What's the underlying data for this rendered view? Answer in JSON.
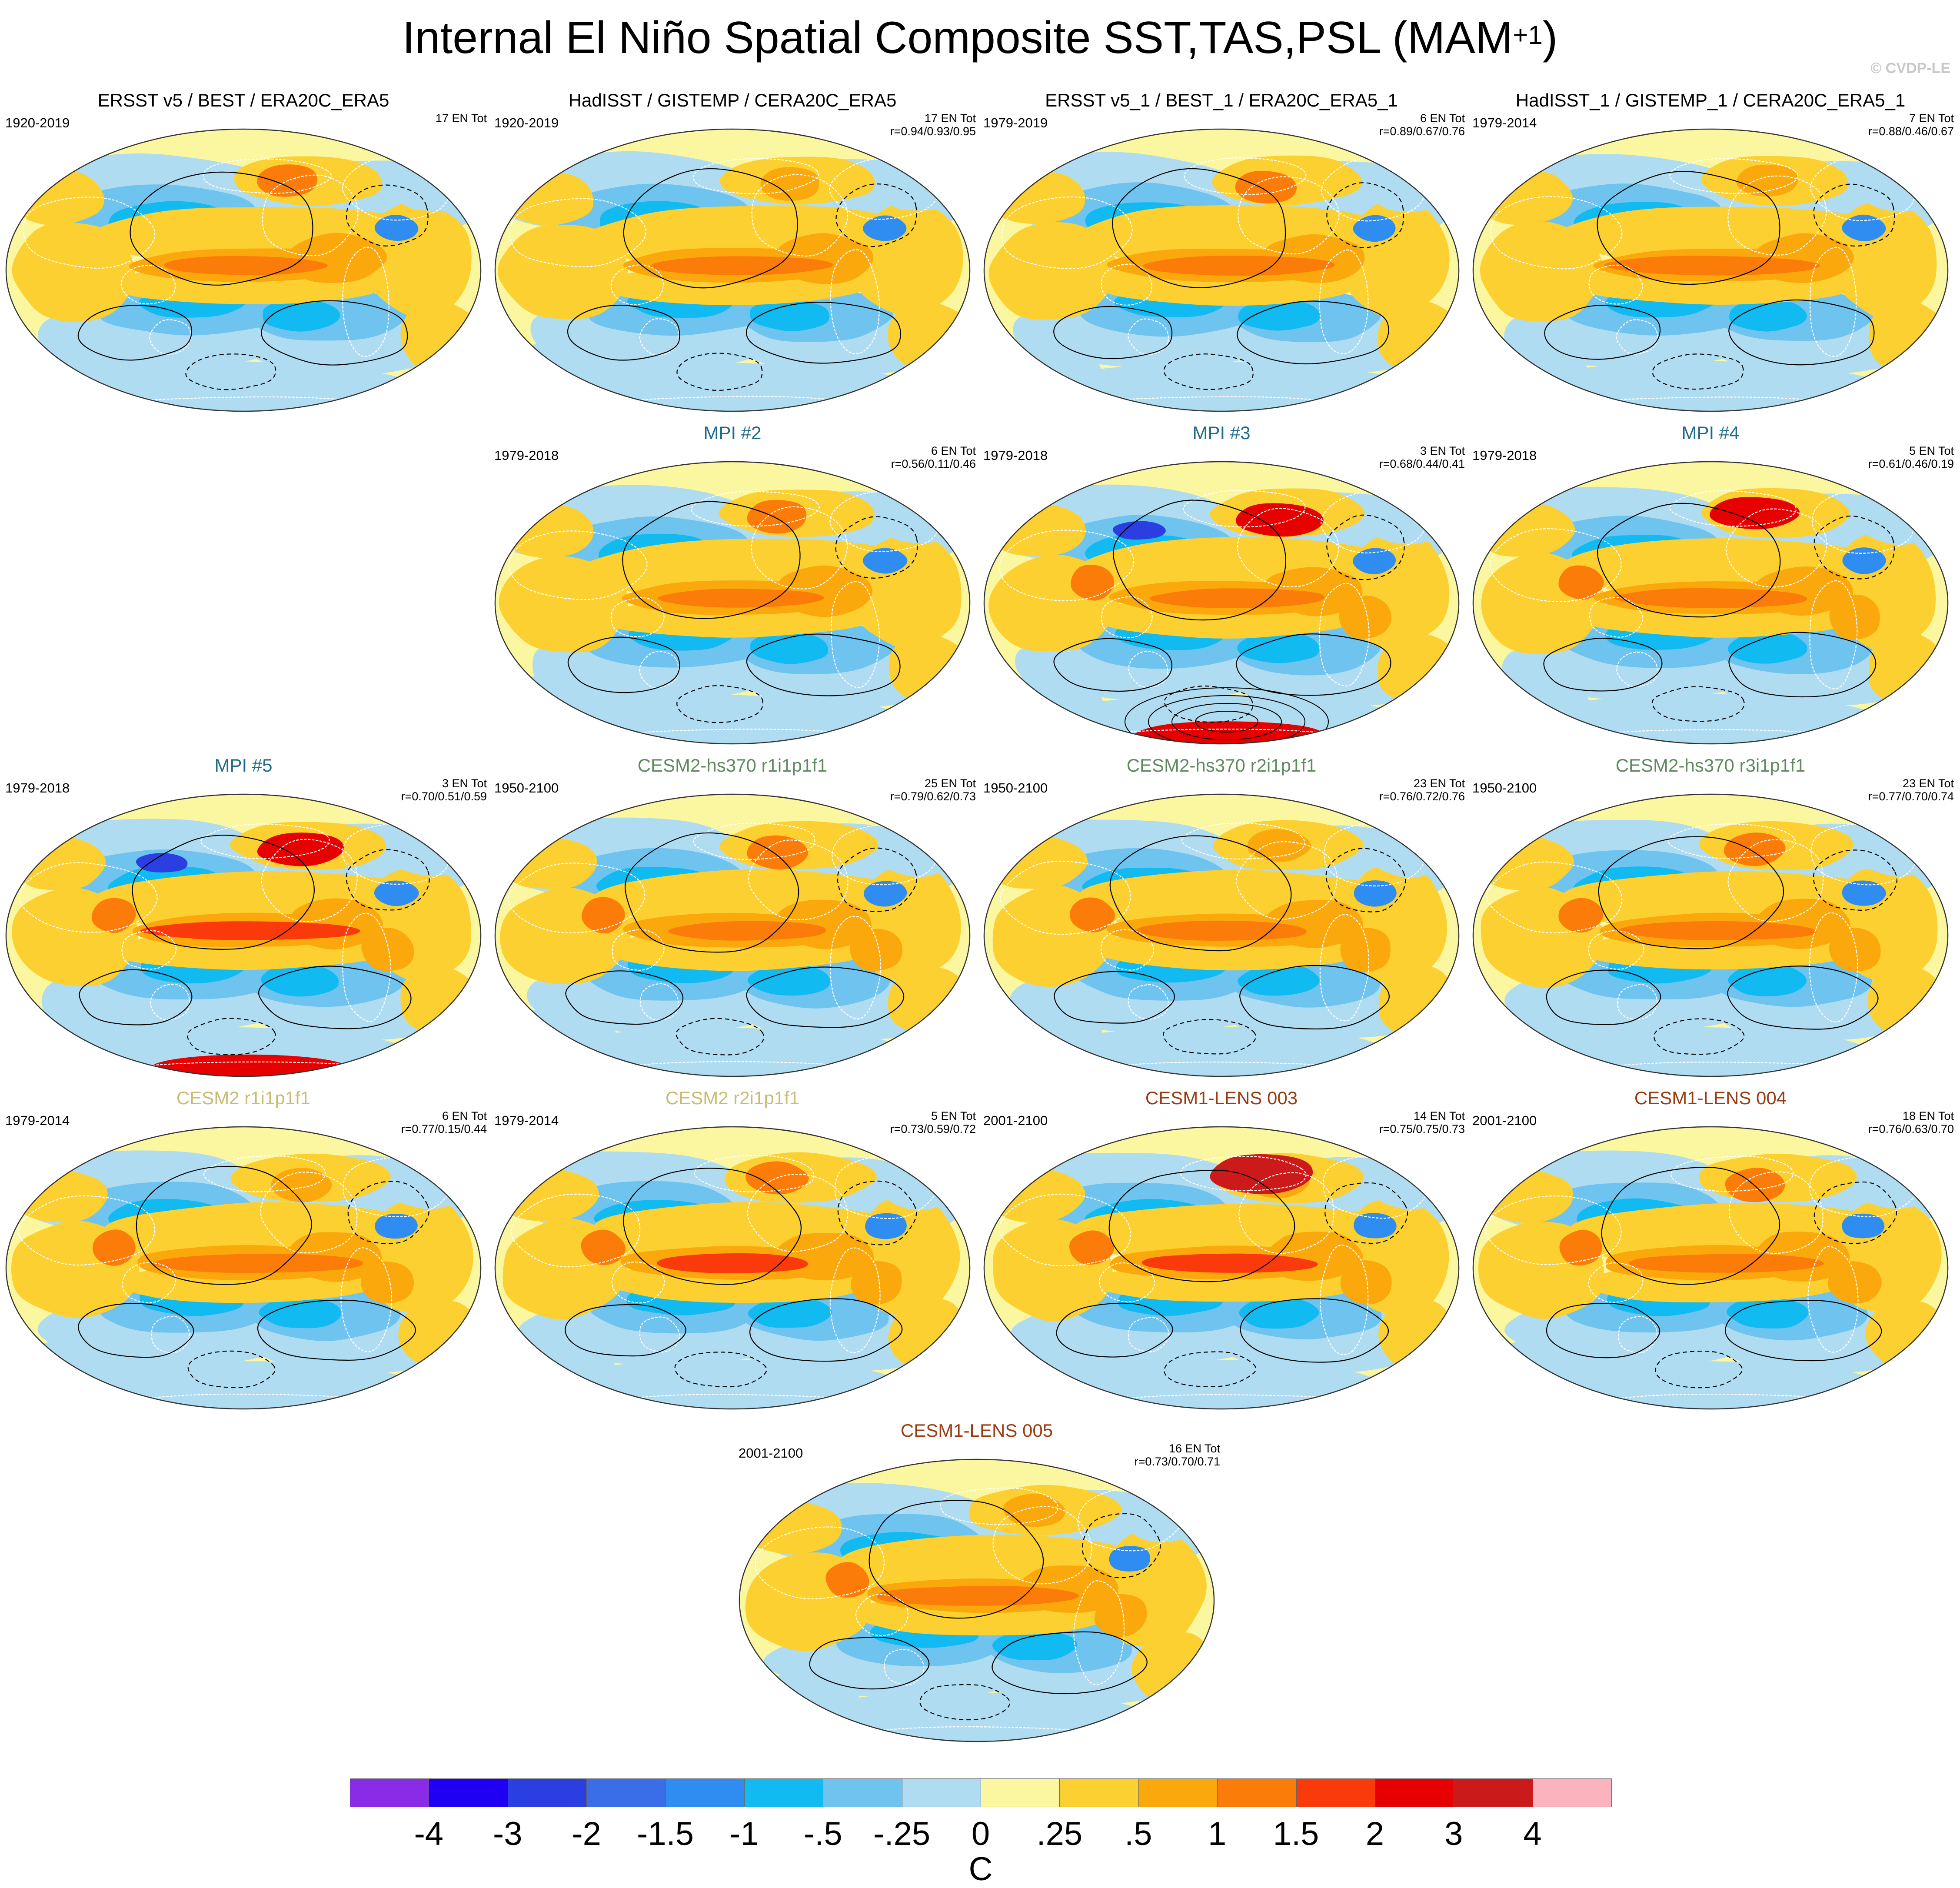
{
  "title": {
    "main": "Internal El Niño Spatial Composite SST,TAS,PSL (MAM",
    "sup": "+1",
    "close": ")"
  },
  "copyright": "© CVDP-LE",
  "colors": {
    "title_obs": "#000000",
    "title_mpi": "#1e6b8a",
    "title_cesm2hs": "#5e8a5e",
    "title_cesm2": "#c9bc72",
    "title_lens": "#9a3c12",
    "land_outline": "#ffffff",
    "psl_contour": "#000000"
  },
  "panels": [
    {
      "title": "ERSST v5 / BEST / ERA20C_ERA5",
      "years": "1920-2019",
      "count": "17 EN Tot",
      "r": "",
      "group": "obs"
    },
    {
      "title": "HadISST / GISTEMP / CERA20C_ERA5",
      "years": "1920-2019",
      "count": "17 EN Tot",
      "r": "r=0.94/0.93/0.95",
      "group": "obs"
    },
    {
      "title": "ERSST v5_1 / BEST_1 / ERA20C_ERA5_1",
      "years": "1979-2019",
      "count": "6 EN Tot",
      "r": "r=0.89/0.67/0.76",
      "group": "obs"
    },
    {
      "title": "HadISST_1 / GISTEMP_1 / CERA20C_ERA5_1",
      "years": "1979-2014",
      "count": "7 EN Tot",
      "r": "r=0.88/0.46/0.67",
      "group": "obs"
    },
    {
      "title": "MPI #2",
      "years": "1979-2018",
      "count": "6 EN Tot",
      "r": "r=0.56/0.11/0.46",
      "group": "mpi"
    },
    {
      "title": "MPI #3",
      "years": "1979-2018",
      "count": "3 EN Tot",
      "r": "r=0.68/0.44/0.41",
      "group": "mpi"
    },
    {
      "title": "MPI #4",
      "years": "1979-2018",
      "count": "5 EN Tot",
      "r": "r=0.61/0.46/0.19",
      "group": "mpi"
    },
    {
      "title": "MPI #5",
      "years": "1979-2018",
      "count": "3 EN Tot",
      "r": "r=0.70/0.51/0.59",
      "group": "mpi"
    },
    {
      "title": "CESM2-hs370 r1i1p1f1",
      "years": "1950-2100",
      "count": "25 EN Tot",
      "r": "r=0.79/0.62/0.73",
      "group": "cesm2hs"
    },
    {
      "title": "CESM2-hs370 r2i1p1f1",
      "years": "1950-2100",
      "count": "23 EN Tot",
      "r": "r=0.76/0.72/0.76",
      "group": "cesm2hs"
    },
    {
      "title": "CESM2-hs370 r3i1p1f1",
      "years": "1950-2100",
      "count": "23 EN Tot",
      "r": "r=0.77/0.70/0.74",
      "group": "cesm2hs"
    },
    {
      "title": "CESM2 r1i1p1f1",
      "years": "1979-2014",
      "count": "6 EN Tot",
      "r": "r=0.77/0.15/0.44",
      "group": "cesm2"
    },
    {
      "title": "CESM2 r2i1p1f1",
      "years": "1979-2014",
      "count": "5 EN Tot",
      "r": "r=0.73/0.59/0.72",
      "group": "cesm2"
    },
    {
      "title": "CESM1-LENS 003",
      "years": "2001-2100",
      "count": "14 EN Tot",
      "r": "r=0.75/0.75/0.73",
      "group": "lens"
    },
    {
      "title": "CESM1-LENS 004",
      "years": "2001-2100",
      "count": "18 EN Tot",
      "r": "r=0.76/0.63/0.70",
      "group": "lens"
    },
    {
      "title": "CESM1-LENS 005",
      "years": "2001-2100",
      "count": "16 EN Tot",
      "r": "r=0.73/0.70/0.71",
      "group": "lens"
    }
  ],
  "chart_data": {
    "type": "heatmap",
    "variables": [
      "SST",
      "TAS",
      "PSL"
    ],
    "season": "MAM+1",
    "colorbar": {
      "unit": "C",
      "levels": [
        "-4",
        "-3",
        "-2",
        "-1.5",
        "-1",
        "-.5",
        "-.25",
        "0",
        ".25",
        ".5",
        "1",
        "1.5",
        "2",
        "3",
        "4"
      ],
      "colors": [
        "#8a2be8",
        "#2000f5",
        "#2a3ee2",
        "#3a6ee8",
        "#2f8cf0",
        "#12baf2",
        "#6fc3ef",
        "#b0dcf2",
        "#fbf6a0",
        "#fbd030",
        "#fba80c",
        "#fb7c08",
        "#fb3a0c",
        "#e60000",
        "#cc1a1a",
        "#fbb4be"
      ]
    }
  }
}
